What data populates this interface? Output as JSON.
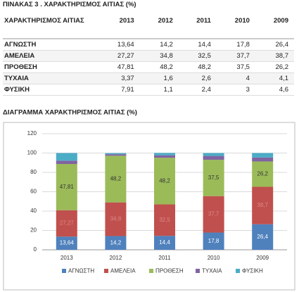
{
  "table": {
    "title": "ΠΙΝΑΚΑΣ 3 . ΧΑΡΑΚΤΗΡΙΣΜΟΣ ΑΙΤΙΑΣ (%)",
    "header": [
      "ΧΑΡΑΚΤΗΡΙΣΜΟΣ ΑΙΤΙΑΣ",
      "2013",
      "2012",
      "2011",
      "2010",
      "2009"
    ],
    "rows": [
      [
        "ΑΓΝΩΣΤΗ",
        "13,64",
        "14,2",
        "14,4",
        "17,8",
        "26,4"
      ],
      [
        "ΑΜΕΛΕΙΑ",
        "27,27",
        "34,8",
        "32,5",
        "37,7",
        "38,7"
      ],
      [
        "ΠΡΟΘΕΣΗ",
        "47,81",
        "48,2",
        "48,2",
        "37,5",
        "26,2"
      ],
      [
        "ΤΥΧΑΙΑ",
        "3,37",
        "1,6",
        "2,6",
        "4",
        "4,1"
      ],
      [
        "ΦΥΣΙΚΗ",
        "7,91",
        "1,1",
        "2,4",
        "3",
        "4,6"
      ]
    ]
  },
  "chart_data": {
    "type": "stacked-bar",
    "title": "ΔΙΑΓΡΑΜΜΑ ΧΑΡΑΚΤΗΡΙΣΜΟΣ ΑΙΤΙΑΣ (%)",
    "categories": [
      "2013",
      "2012",
      "2011",
      "2010",
      "2009"
    ],
    "series": [
      {
        "name": "ΑΓΝΩΣΤΗ",
        "color": "#4f81bd",
        "values": [
          13.64,
          14.2,
          14.4,
          17.8,
          26.4
        ],
        "value_labels": [
          "13,64",
          "14,2",
          "14,4",
          "17,8",
          "26,4"
        ]
      },
      {
        "name": "ΑΜΕΛΕΙΑ",
        "color": "#c0504d",
        "values": [
          27.27,
          34.8,
          32.5,
          37.7,
          38.7
        ],
        "value_labels": [
          "27,27",
          "34,8",
          "32,5",
          "37,7",
          "38,7"
        ]
      },
      {
        "name": "ΠΡΟΘΕΣΗ",
        "color": "#9bbb59",
        "values": [
          47.81,
          48.2,
          48.2,
          37.5,
          26.2
        ],
        "value_labels": [
          "47,81",
          "48,2",
          "48,2",
          "37,5",
          "26,2"
        ]
      },
      {
        "name": "ΤΥΧΑΙΑ",
        "color": "#8064a2",
        "values": [
          3.37,
          1.6,
          2.6,
          4,
          4.1
        ]
      },
      {
        "name": "ΦΥΣΙΚΗ",
        "color": "#4bacc6",
        "values": [
          7.91,
          1.1,
          2.4,
          3,
          4.6
        ]
      }
    ],
    "ylim": [
      0,
      120
    ],
    "yticks": [
      0,
      20,
      40,
      60,
      80,
      100,
      120
    ],
    "grid": true,
    "legend": "bottom"
  }
}
